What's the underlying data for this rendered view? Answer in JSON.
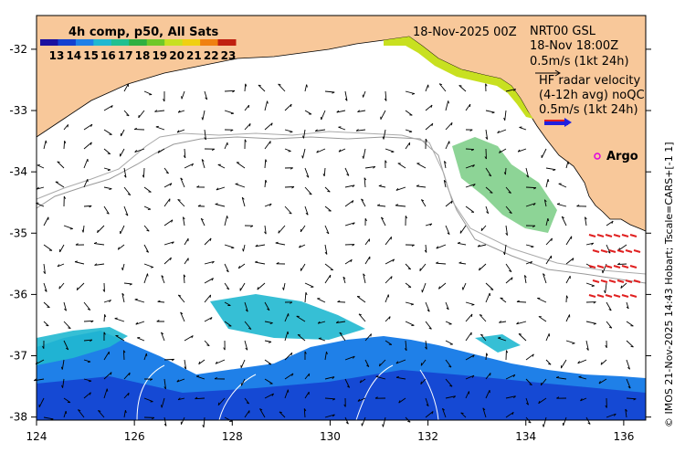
{
  "colorbar": {
    "title": "4h comp, p50, All Sats",
    "ticks": [
      "13",
      "14",
      "15",
      "16",
      "17",
      "18",
      "19",
      "20",
      "21",
      "22",
      "23"
    ],
    "colors": [
      "#1a10a0",
      "#1440d0",
      "#1f80e8",
      "#20b8d0",
      "#20c090",
      "#30b040",
      "#70c828",
      "#c8e020",
      "#f0d010",
      "#f08010",
      "#c02010"
    ]
  },
  "header": {
    "date": "18-Nov-2025 00Z",
    "nrt_line1": "NRT00 GSL",
    "nrt_line2": "18-Nov 18:00Z",
    "nrt_scale": "0.5m/s (1kt 24h)",
    "hf_line1": "HF radar velocity",
    "hf_line2": "(4-12h avg) noQC",
    "hf_scale": "0.5m/s (1kt 24h)"
  },
  "argo_label": "Argo",
  "axes": {
    "x_ticks": [
      "124",
      "126",
      "128",
      "130",
      "132",
      "134",
      "136"
    ],
    "y_ticks": [
      "-32",
      "-33",
      "-34",
      "-35",
      "-36",
      "-37",
      "-38"
    ]
  },
  "side_caption": "© IMOS 21-Nov-2025 14:43 Hobart; Tscale=CARS+[-1 1]",
  "colors": {
    "land": "#f8c89a",
    "ocean": "#ffffff",
    "argo": "#e000e0",
    "radar": "#e02020"
  }
}
